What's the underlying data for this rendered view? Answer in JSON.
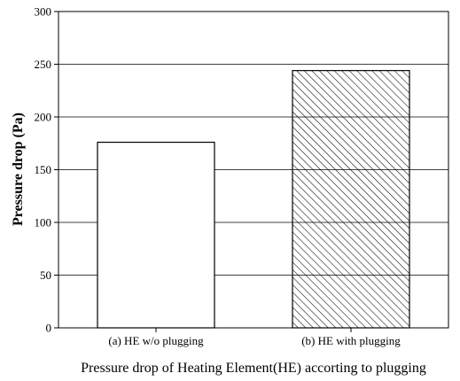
{
  "chart_data": {
    "type": "bar",
    "categories": [
      "(a) HE w/o plugging",
      "(b) HE with plugging"
    ],
    "values": [
      176,
      244
    ],
    "title": "",
    "xlabel": "Pressure drop of Heating Element(HE) accorting to plugging",
    "ylabel": "Pressure drop (Pa)",
    "ylim": [
      0,
      300
    ],
    "yticks": [
      0,
      50,
      100,
      150,
      200,
      250,
      300
    ],
    "grid": "horizontal",
    "bar_fills": [
      "none",
      "hatched"
    ],
    "colors": {
      "bar_stroke": "#000000",
      "grid": "#000000",
      "background": "#ffffff"
    }
  }
}
